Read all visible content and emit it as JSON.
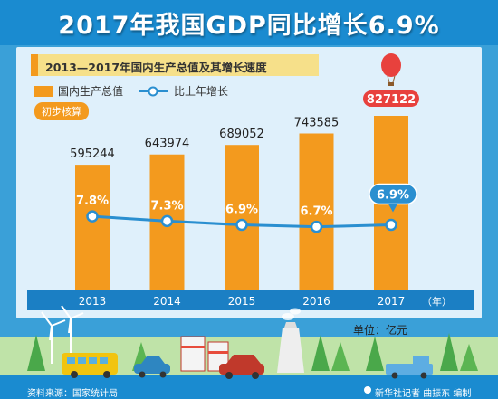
{
  "title": "2017年我国GDP同比增长6.9%",
  "subtitle": "2013—2017年国内生产总值及其增长速度",
  "legend": {
    "gdp": "国内生产总值",
    "growth": "比上年增长"
  },
  "badge": "初步核算",
  "unit_label": "单位：亿元",
  "year_suffix": "（年）",
  "source": "资料来源：国家统计局",
  "credit": "新华社记者 曲振东 编制",
  "colors": {
    "bar": "#f39a1e",
    "line": "#2a8fd0",
    "highlight": "#e8413d",
    "background": "#3aa0d8",
    "card": "#dff0fb"
  },
  "chart_data": {
    "type": "bar",
    "title": "2013—2017年国内生产总值及其增长速度",
    "categories": [
      "2013",
      "2014",
      "2015",
      "2016",
      "2017"
    ],
    "series": [
      {
        "name": "国内生产总值",
        "type": "bar",
        "values": [
          595244,
          643974,
          689052,
          743585,
          827122
        ]
      },
      {
        "name": "比上年增长",
        "type": "line",
        "values": [
          7.8,
          7.3,
          6.9,
          6.7,
          6.9
        ],
        "labels": [
          "7.8%",
          "7.3%",
          "6.9%",
          "6.7%",
          "6.9%"
        ]
      }
    ],
    "xlabel": "（年）",
    "ylabel": "单位：亿元",
    "ylim": [
      0,
      900000
    ],
    "growth_ylim": [
      0,
      20
    ],
    "grid": false,
    "legend_position": "top-left"
  }
}
